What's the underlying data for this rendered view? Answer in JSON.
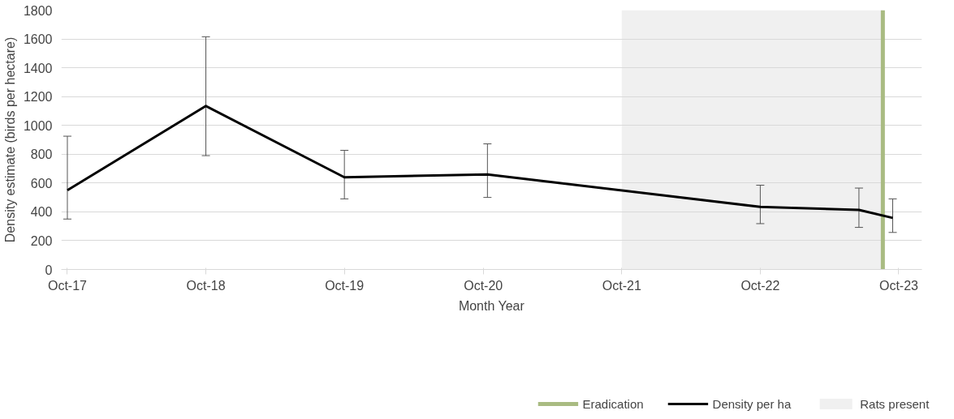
{
  "chart_data": {
    "type": "line",
    "xlabel": "Month Year",
    "ylabel": "Density estimate (birds per hectare)",
    "x": [
      "2017-10-01",
      "2018-10-01",
      "2019-10-01",
      "2020-10-12",
      "2022-10-01",
      "2023-06-18",
      "2023-09-15"
    ],
    "series": [
      {
        "name": "Density per ha",
        "color": "#000000",
        "values": [
          550,
          1135,
          640,
          660,
          434,
          413,
          358
        ],
        "errors": [
          [
            350,
            925
          ],
          [
            790,
            1615
          ],
          [
            490,
            827
          ],
          [
            500,
            872
          ],
          [
            318,
            585
          ],
          [
            292,
            565
          ],
          [
            257,
            490
          ]
        ]
      }
    ],
    "xlim": [
      "2017-09-15",
      "2023-12-01"
    ],
    "xticks": [
      {
        "value": "2017-10-01",
        "label": "Oct-17"
      },
      {
        "value": "2018-10-01",
        "label": "Oct-18"
      },
      {
        "value": "2019-10-01",
        "label": "Oct-19"
      },
      {
        "value": "2020-10-01",
        "label": "Oct-20"
      },
      {
        "value": "2021-10-01",
        "label": "Oct-21"
      },
      {
        "value": "2022-10-01",
        "label": "Oct-22"
      },
      {
        "value": "2023-10-01",
        "label": "Oct-23"
      }
    ],
    "ylim": [
      0,
      1800
    ],
    "yticks": [
      0,
      200,
      400,
      600,
      800,
      1000,
      1200,
      1400,
      1600,
      1800
    ],
    "ref_lines": [
      {
        "axis": "x",
        "value": "2023-08-20",
        "label": "Eradication",
        "color": "#a9bb82"
      }
    ],
    "bands": [
      {
        "axis": "x",
        "from": "2021-10-01",
        "to": "2023-08-20",
        "label": "Rats present",
        "color": "#f0f0f0"
      }
    ],
    "grid": "y",
    "legend": "bottom",
    "marker": "none",
    "line_style": "solid"
  }
}
